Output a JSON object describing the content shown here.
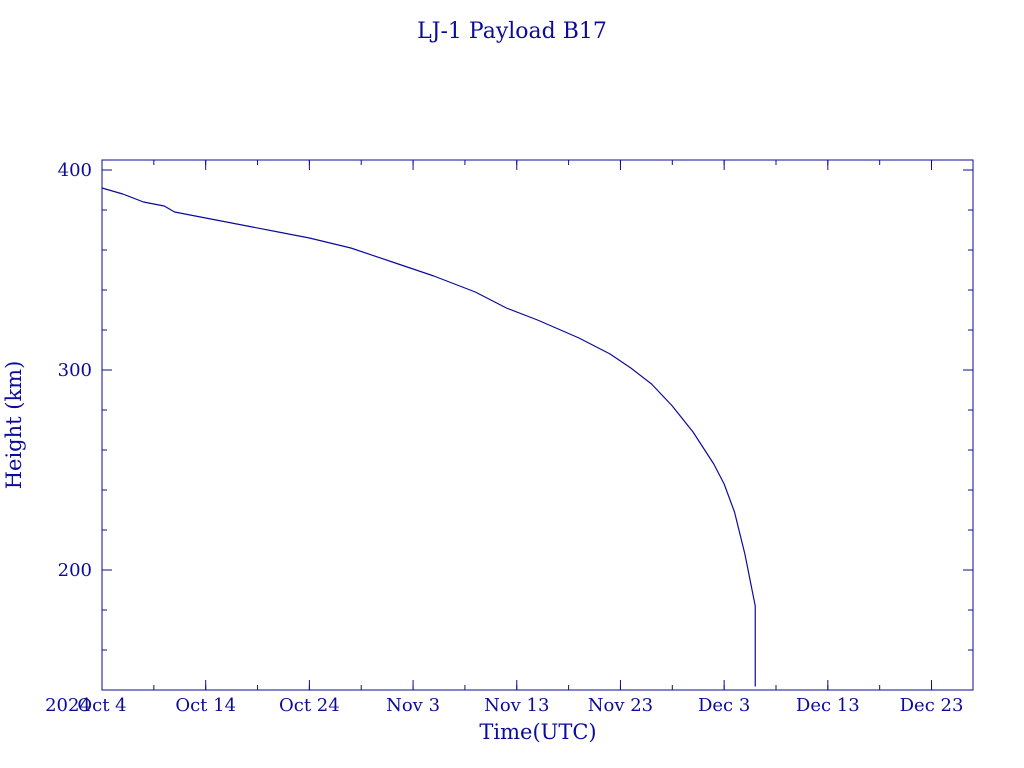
{
  "chart_data": {
    "type": "line",
    "title": "LJ-1 Payload B17",
    "xlabel": "Time(UTC)",
    "ylabel": "Height (km)",
    "year_label": "2024",
    "x_type": "date",
    "xlim": [
      "2024-10-04",
      "2024-12-27"
    ],
    "ylim": [
      140,
      405
    ],
    "grid": false,
    "x_ticks": [
      {
        "date": "2024-10-04",
        "label": "Oct  4"
      },
      {
        "date": "2024-10-14",
        "label": "Oct 14"
      },
      {
        "date": "2024-10-24",
        "label": "Oct 24"
      },
      {
        "date": "2024-11-03",
        "label": "Nov  3"
      },
      {
        "date": "2024-11-13",
        "label": "Nov 13"
      },
      {
        "date": "2024-11-23",
        "label": "Nov 23"
      },
      {
        "date": "2024-12-03",
        "label": "Dec  3"
      },
      {
        "date": "2024-12-13",
        "label": "Dec 13"
      },
      {
        "date": "2024-12-23",
        "label": "Dec 23"
      }
    ],
    "y_ticks": [
      {
        "value": 200,
        "label": "200"
      },
      {
        "value": 300,
        "label": "300"
      },
      {
        "value": 400,
        "label": "400"
      }
    ],
    "series": [
      {
        "color": "#0b0b9a",
        "points": [
          {
            "x": "2024-10-04",
            "y": 391
          },
          {
            "x": "2024-10-06",
            "y": 388
          },
          {
            "x": "2024-10-08",
            "y": 384
          },
          {
            "x": "2024-10-10",
            "y": 382
          },
          {
            "x": "2024-10-11",
            "y": 379
          },
          {
            "x": "2024-10-13",
            "y": 377
          },
          {
            "x": "2024-10-15",
            "y": 375
          },
          {
            "x": "2024-10-18",
            "y": 372
          },
          {
            "x": "2024-10-21",
            "y": 369
          },
          {
            "x": "2024-10-24",
            "y": 366
          },
          {
            "x": "2024-10-28",
            "y": 361
          },
          {
            "x": "2024-11-01",
            "y": 354
          },
          {
            "x": "2024-11-05",
            "y": 347
          },
          {
            "x": "2024-11-09",
            "y": 339
          },
          {
            "x": "2024-11-12",
            "y": 331
          },
          {
            "x": "2024-11-15",
            "y": 325
          },
          {
            "x": "2024-11-19",
            "y": 316
          },
          {
            "x": "2024-11-22",
            "y": 308
          },
          {
            "x": "2024-11-24",
            "y": 301
          },
          {
            "x": "2024-11-26",
            "y": 293
          },
          {
            "x": "2024-11-28",
            "y": 282
          },
          {
            "x": "2024-11-30",
            "y": 269
          },
          {
            "x": "2024-12-02",
            "y": 253
          },
          {
            "x": "2024-12-03",
            "y": 243
          },
          {
            "x": "2024-12-04",
            "y": 229
          },
          {
            "x": "2024-12-05",
            "y": 208
          },
          {
            "x": "2024-12-06",
            "y": 182
          },
          {
            "x": "2024-12-06",
            "y": 163
          },
          {
            "x": "2024-12-06",
            "y": 142
          }
        ]
      }
    ]
  }
}
